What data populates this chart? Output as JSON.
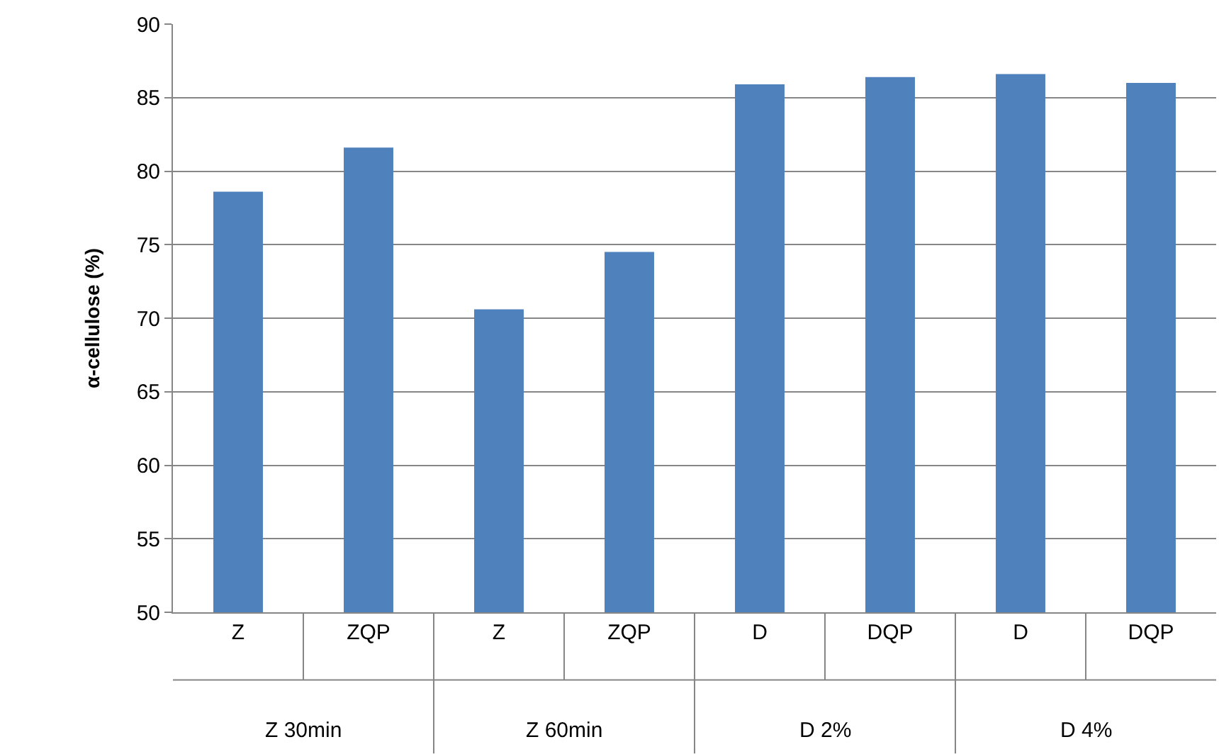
{
  "chart_data": {
    "type": "bar",
    "ylabel": "α-cellulose (%)",
    "categories": [
      "Z",
      "ZQP",
      "Z",
      "ZQP",
      "D",
      "DQP",
      "D",
      "DQP"
    ],
    "values": [
      78.6,
      81.6,
      70.6,
      74.5,
      85.9,
      86.4,
      86.6,
      86.0
    ],
    "color": "#4f81bd",
    "ylim": [
      50,
      90
    ],
    "yticks": [
      50,
      55,
      60,
      65,
      70,
      75,
      80,
      85,
      90
    ],
    "grid": "y",
    "annotations": [
      "Z 30min",
      "Z 60min",
      "D 2%",
      "D 4%"
    ]
  }
}
